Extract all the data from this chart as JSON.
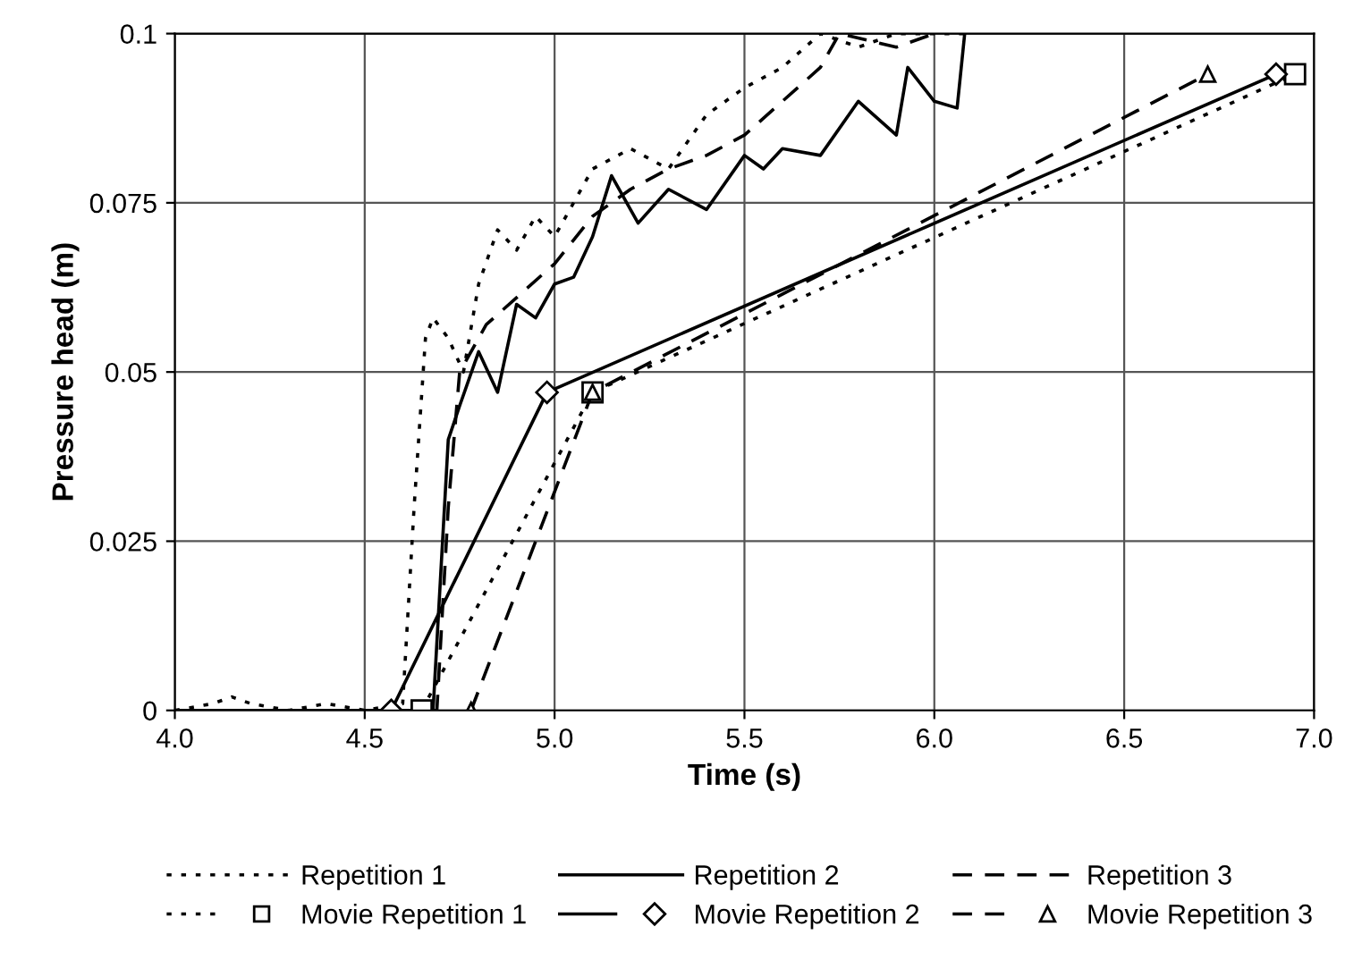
{
  "chart_data": {
    "type": "line",
    "xlabel": "Time (s)",
    "ylabel": "Pressure head (m)",
    "xlim": [
      4.0,
      7.0
    ],
    "xticks": [
      {
        "value": 4.0,
        "label": "4.0"
      },
      {
        "value": 4.5,
        "label": "4.5"
      },
      {
        "value": 5.0,
        "label": "5.0"
      },
      {
        "value": 5.5,
        "label": "5.5"
      },
      {
        "value": 6.0,
        "label": "6.0"
      },
      {
        "value": 6.5,
        "label": "6.5"
      },
      {
        "value": 7.0,
        "label": "7.0"
      }
    ],
    "ylim": [
      0,
      0.1
    ],
    "yticks": [
      0,
      0.025,
      0.05,
      0.075,
      0.1
    ],
    "grid": true,
    "legend": "bottom",
    "series": [
      {
        "name": "Repetition 1",
        "color": "#000000",
        "line_style": "dotted",
        "marker": "none",
        "x": [
          4.0,
          4.1,
          4.15,
          4.2,
          4.3,
          4.4,
          4.5,
          4.6,
          4.63,
          4.66,
          4.68,
          4.72,
          4.76,
          4.8,
          4.85,
          4.9,
          4.95,
          5.0,
          5.05,
          5.1,
          5.2,
          5.3,
          5.4,
          5.5,
          5.6,
          5.7,
          5.8,
          5.9,
          6.0,
          6.1
        ],
        "values": [
          0.0,
          0.001,
          0.002,
          0.001,
          0.0,
          0.001,
          0.0,
          0.001,
          0.03,
          0.055,
          0.058,
          0.055,
          0.05,
          0.063,
          0.071,
          0.068,
          0.073,
          0.07,
          0.075,
          0.08,
          0.083,
          0.08,
          0.088,
          0.092,
          0.095,
          0.1,
          0.098,
          0.1,
          0.1,
          0.1
        ]
      },
      {
        "name": "Repetition 2",
        "color": "#000000",
        "line_style": "solid",
        "marker": "none",
        "x": [
          4.0,
          4.2,
          4.4,
          4.6,
          4.68,
          4.7,
          4.72,
          4.75,
          4.8,
          4.85,
          4.9,
          4.95,
          5.0,
          5.05,
          5.1,
          5.15,
          5.22,
          5.3,
          5.4,
          5.5,
          5.55,
          5.6,
          5.7,
          5.8,
          5.9,
          5.93,
          6.0,
          6.06,
          6.08
        ],
        "values": [
          0.0,
          0.0,
          0.0,
          0.0,
          0.0,
          0.02,
          0.04,
          0.045,
          0.053,
          0.047,
          0.06,
          0.058,
          0.063,
          0.064,
          0.07,
          0.079,
          0.072,
          0.077,
          0.074,
          0.082,
          0.08,
          0.083,
          0.082,
          0.09,
          0.085,
          0.095,
          0.09,
          0.089,
          0.1
        ]
      },
      {
        "name": "Repetition 3",
        "color": "#000000",
        "line_style": "dashed",
        "marker": "none",
        "x": [
          4.0,
          4.2,
          4.4,
          4.6,
          4.69,
          4.72,
          4.75,
          4.82,
          4.92,
          5.0,
          5.1,
          5.2,
          5.3,
          5.4,
          5.5,
          5.6,
          5.7,
          5.75,
          5.9,
          6.0
        ],
        "values": [
          0.0,
          0.0,
          0.0,
          0.0,
          0.0,
          0.03,
          0.05,
          0.057,
          0.062,
          0.066,
          0.073,
          0.077,
          0.08,
          0.082,
          0.085,
          0.09,
          0.095,
          0.1,
          0.098,
          0.1
        ]
      },
      {
        "name": "Movie Repetition 1",
        "color": "#000000",
        "line_style": "dotted",
        "marker": "square",
        "x": [
          4.65,
          5.1,
          6.95
        ],
        "values": [
          0.0,
          0.047,
          0.094
        ]
      },
      {
        "name": "Movie Repetition 2",
        "color": "#000000",
        "line_style": "solid",
        "marker": "diamond",
        "x": [
          4.57,
          4.98,
          6.9
        ],
        "values": [
          0.0,
          0.047,
          0.094
        ]
      },
      {
        "name": "Movie Repetition 3",
        "color": "#000000",
        "line_style": "dashed",
        "marker": "triangle",
        "x": [
          4.78,
          5.1,
          6.72
        ],
        "values": [
          0.0,
          0.047,
          0.094
        ]
      }
    ]
  }
}
